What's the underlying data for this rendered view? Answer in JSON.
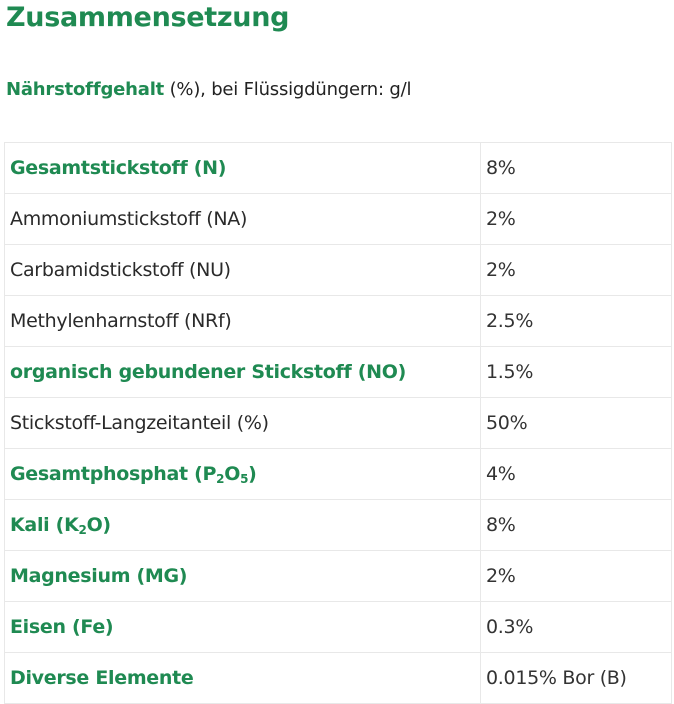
{
  "page": {
    "title": "Zusammensetzung",
    "subtitle": {
      "strong": "Nährstoffgehalt",
      "rest": " (%), bei Flüssigdüngern: g/l"
    }
  },
  "colors": {
    "accent_green": "#1f8a52",
    "text": "#222222",
    "border": "#e8e8e8"
  },
  "table": {
    "rows": [
      {
        "label": "Gesamtstickstoff (N)",
        "value": "8%",
        "emphasis": true
      },
      {
        "label": "Ammoniumstickstoff (NA)",
        "value": "2%",
        "emphasis": false
      },
      {
        "label": "Carbamidstickstoff (NU)",
        "value": "2%",
        "emphasis": false
      },
      {
        "label": "Methylenharnstoff (NRf)",
        "value": "2.5%",
        "emphasis": false
      },
      {
        "label": "organisch gebundener Stickstoff (NO)",
        "value": "1.5%",
        "emphasis": true
      },
      {
        "label": "Stickstoff-Langzeitanteil (%)",
        "value": "50%",
        "emphasis": false
      },
      {
        "label_parts": [
          "Gesamtphosphat (P",
          "2",
          "O",
          "5",
          ")"
        ],
        "label": "Gesamtphosphat (P₂O₅)",
        "value": "4%",
        "emphasis": true
      },
      {
        "label_parts": [
          "Kali (K",
          "2",
          "O)"
        ],
        "label": "Kali (K₂O)",
        "value": "8%",
        "emphasis": true
      },
      {
        "label": "Magnesium (MG)",
        "value": "2%",
        "emphasis": true
      },
      {
        "label": "Eisen (Fe)",
        "value": "0.3%",
        "emphasis": true
      },
      {
        "label": "Diverse Elemente",
        "value": "0.015% Bor (B)",
        "emphasis": true
      }
    ]
  }
}
